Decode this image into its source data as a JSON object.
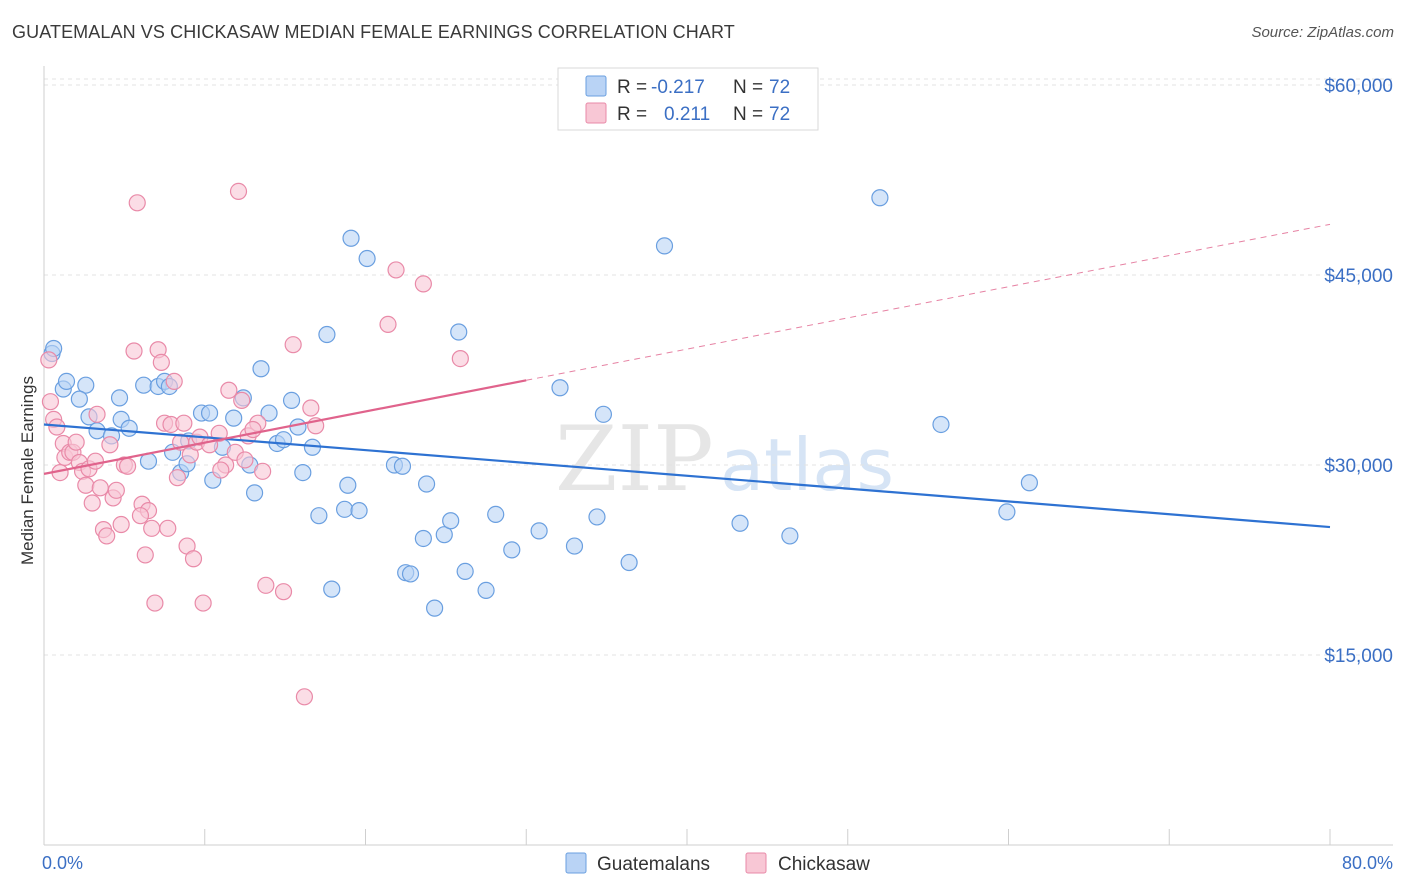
{
  "title": "GUATEMALAN VS CHICKASAW MEDIAN FEMALE EARNINGS CORRELATION CHART",
  "source": "Source: ZipAtlas.com",
  "colors": {
    "blue_fill": "#b9d3f5",
    "blue_stroke": "#6a9fe0",
    "blue_line": "#2e72d2",
    "pink_fill": "#f8c7d5",
    "pink_stroke": "#e98aa8",
    "pink_line": "#e0638c",
    "tick": "#3b6fc4",
    "grid": "#e3e3e3"
  },
  "legend": {
    "r_label": "R =",
    "n_label": "N =",
    "rows": [
      {
        "r": "-0.217",
        "n": "72",
        "series": "Guatemalans"
      },
      {
        "r": "0.211",
        "n": "72",
        "series": "Chickasaw"
      }
    ]
  },
  "watermark": {
    "zip": "ZIP",
    "atlas": "atlas"
  },
  "chart_data": {
    "type": "scatter",
    "title": "GUATEMALAN VS CHICKASAW MEDIAN FEMALE EARNINGS CORRELATION CHART",
    "xlabel": "",
    "ylabel": "Median Female Earnings",
    "xlim": [
      0,
      80
    ],
    "ylim": [
      0,
      61500
    ],
    "x_tick_labels": [
      "0.0%",
      "80.0%"
    ],
    "y_ticks": [
      15000,
      30000,
      45000,
      60000
    ],
    "y_tick_labels": [
      "$15,000",
      "$30,000",
      "$45,000",
      "$60,000"
    ],
    "grid": true,
    "legend_position": "top-center",
    "series": [
      {
        "name": "Guatemalans",
        "trend": {
          "x": [
            0,
            80
          ],
          "y": [
            33200,
            25100
          ],
          "dashed_from": null
        },
        "points": [
          [
            0.5,
            38800
          ],
          [
            0.6,
            39200
          ],
          [
            1.2,
            36000
          ],
          [
            1.4,
            36600
          ],
          [
            2.6,
            36300
          ],
          [
            2.2,
            35200
          ],
          [
            2.8,
            33800
          ],
          [
            3.3,
            32700
          ],
          [
            4.7,
            35300
          ],
          [
            4.8,
            33600
          ],
          [
            5.3,
            32900
          ],
          [
            6.2,
            36300
          ],
          [
            6.5,
            30300
          ],
          [
            7.1,
            36200
          ],
          [
            7.5,
            36600
          ],
          [
            8.0,
            31000
          ],
          [
            8.5,
            29400
          ],
          [
            8.9,
            30100
          ],
          [
            9.0,
            31900
          ],
          [
            9.8,
            34100
          ],
          [
            10.3,
            34100
          ],
          [
            10.5,
            28800
          ],
          [
            11.1,
            31400
          ],
          [
            11.8,
            33700
          ],
          [
            12.4,
            35300
          ],
          [
            12.8,
            30000
          ],
          [
            13.1,
            27800
          ],
          [
            13.5,
            37600
          ],
          [
            14.0,
            34100
          ],
          [
            14.5,
            31700
          ],
          [
            14.9,
            32000
          ],
          [
            15.4,
            35100
          ],
          [
            15.8,
            33000
          ],
          [
            16.1,
            29400
          ],
          [
            16.7,
            31400
          ],
          [
            17.1,
            26000
          ],
          [
            17.6,
            40300
          ],
          [
            17.9,
            20200
          ],
          [
            18.7,
            26500
          ],
          [
            18.9,
            28400
          ],
          [
            19.1,
            47900
          ],
          [
            19.6,
            26400
          ],
          [
            20.1,
            46300
          ],
          [
            21.8,
            30000
          ],
          [
            22.3,
            29900
          ],
          [
            22.5,
            21500
          ],
          [
            22.8,
            21400
          ],
          [
            23.6,
            24200
          ],
          [
            23.8,
            28500
          ],
          [
            24.3,
            18700
          ],
          [
            24.9,
            24500
          ],
          [
            25.3,
            25600
          ],
          [
            25.8,
            40500
          ],
          [
            26.2,
            21600
          ],
          [
            27.5,
            20100
          ],
          [
            28.1,
            26100
          ],
          [
            29.1,
            23300
          ],
          [
            30.8,
            24800
          ],
          [
            32.1,
            36100
          ],
          [
            33.0,
            23600
          ],
          [
            34.4,
            25900
          ],
          [
            34.8,
            34000
          ],
          [
            36.4,
            22300
          ],
          [
            38.6,
            47300
          ],
          [
            43.3,
            25400
          ],
          [
            46.4,
            24400
          ],
          [
            52.0,
            51100
          ],
          [
            55.8,
            33200
          ],
          [
            59.9,
            26300
          ],
          [
            61.3,
            28600
          ],
          [
            7.8,
            36200
          ],
          [
            4.2,
            32300
          ]
        ]
      },
      {
        "name": "Chickasaw",
        "trend": {
          "x": [
            0,
            80
          ],
          "y": [
            29300,
            49000
          ],
          "dashed_from": 30
        },
        "points": [
          [
            0.3,
            38300
          ],
          [
            0.4,
            35000
          ],
          [
            0.6,
            33600
          ],
          [
            0.8,
            33000
          ],
          [
            1.0,
            29400
          ],
          [
            1.2,
            31700
          ],
          [
            1.3,
            30600
          ],
          [
            1.6,
            31000
          ],
          [
            1.8,
            31000
          ],
          [
            2.0,
            31800
          ],
          [
            2.2,
            30200
          ],
          [
            2.4,
            29500
          ],
          [
            2.6,
            28400
          ],
          [
            2.8,
            29700
          ],
          [
            3.0,
            27000
          ],
          [
            3.2,
            30300
          ],
          [
            3.3,
            34000
          ],
          [
            3.5,
            28200
          ],
          [
            3.7,
            24900
          ],
          [
            3.9,
            24400
          ],
          [
            4.1,
            31600
          ],
          [
            4.3,
            27400
          ],
          [
            4.5,
            28000
          ],
          [
            4.8,
            25300
          ],
          [
            5.0,
            30000
          ],
          [
            5.2,
            29900
          ],
          [
            5.6,
            39000
          ],
          [
            5.8,
            50700
          ],
          [
            6.1,
            26900
          ],
          [
            6.3,
            22900
          ],
          [
            6.5,
            26400
          ],
          [
            6.7,
            25000
          ],
          [
            6.9,
            19100
          ],
          [
            7.1,
            39100
          ],
          [
            7.3,
            38100
          ],
          [
            7.5,
            33300
          ],
          [
            7.7,
            25000
          ],
          [
            7.9,
            33200
          ],
          [
            8.1,
            36600
          ],
          [
            8.3,
            29000
          ],
          [
            8.5,
            31800
          ],
          [
            8.7,
            33300
          ],
          [
            8.9,
            23600
          ],
          [
            9.1,
            30800
          ],
          [
            9.3,
            22600
          ],
          [
            9.5,
            31800
          ],
          [
            9.7,
            32200
          ],
          [
            9.9,
            19100
          ],
          [
            10.3,
            31600
          ],
          [
            10.9,
            32500
          ],
          [
            11.3,
            30000
          ],
          [
            11.5,
            35900
          ],
          [
            11.9,
            31000
          ],
          [
            12.1,
            51600
          ],
          [
            12.3,
            35100
          ],
          [
            12.5,
            30400
          ],
          [
            12.7,
            32300
          ],
          [
            13.3,
            33300
          ],
          [
            13.6,
            29500
          ],
          [
            13.8,
            20500
          ],
          [
            14.9,
            20000
          ],
          [
            15.5,
            39500
          ],
          [
            16.2,
            11700
          ],
          [
            16.6,
            34500
          ],
          [
            16.9,
            33100
          ],
          [
            21.4,
            41100
          ],
          [
            21.9,
            45400
          ],
          [
            23.6,
            44300
          ],
          [
            25.9,
            38400
          ],
          [
            11.0,
            29600
          ],
          [
            6.0,
            26000
          ],
          [
            13.0,
            32800
          ]
        ]
      }
    ]
  }
}
